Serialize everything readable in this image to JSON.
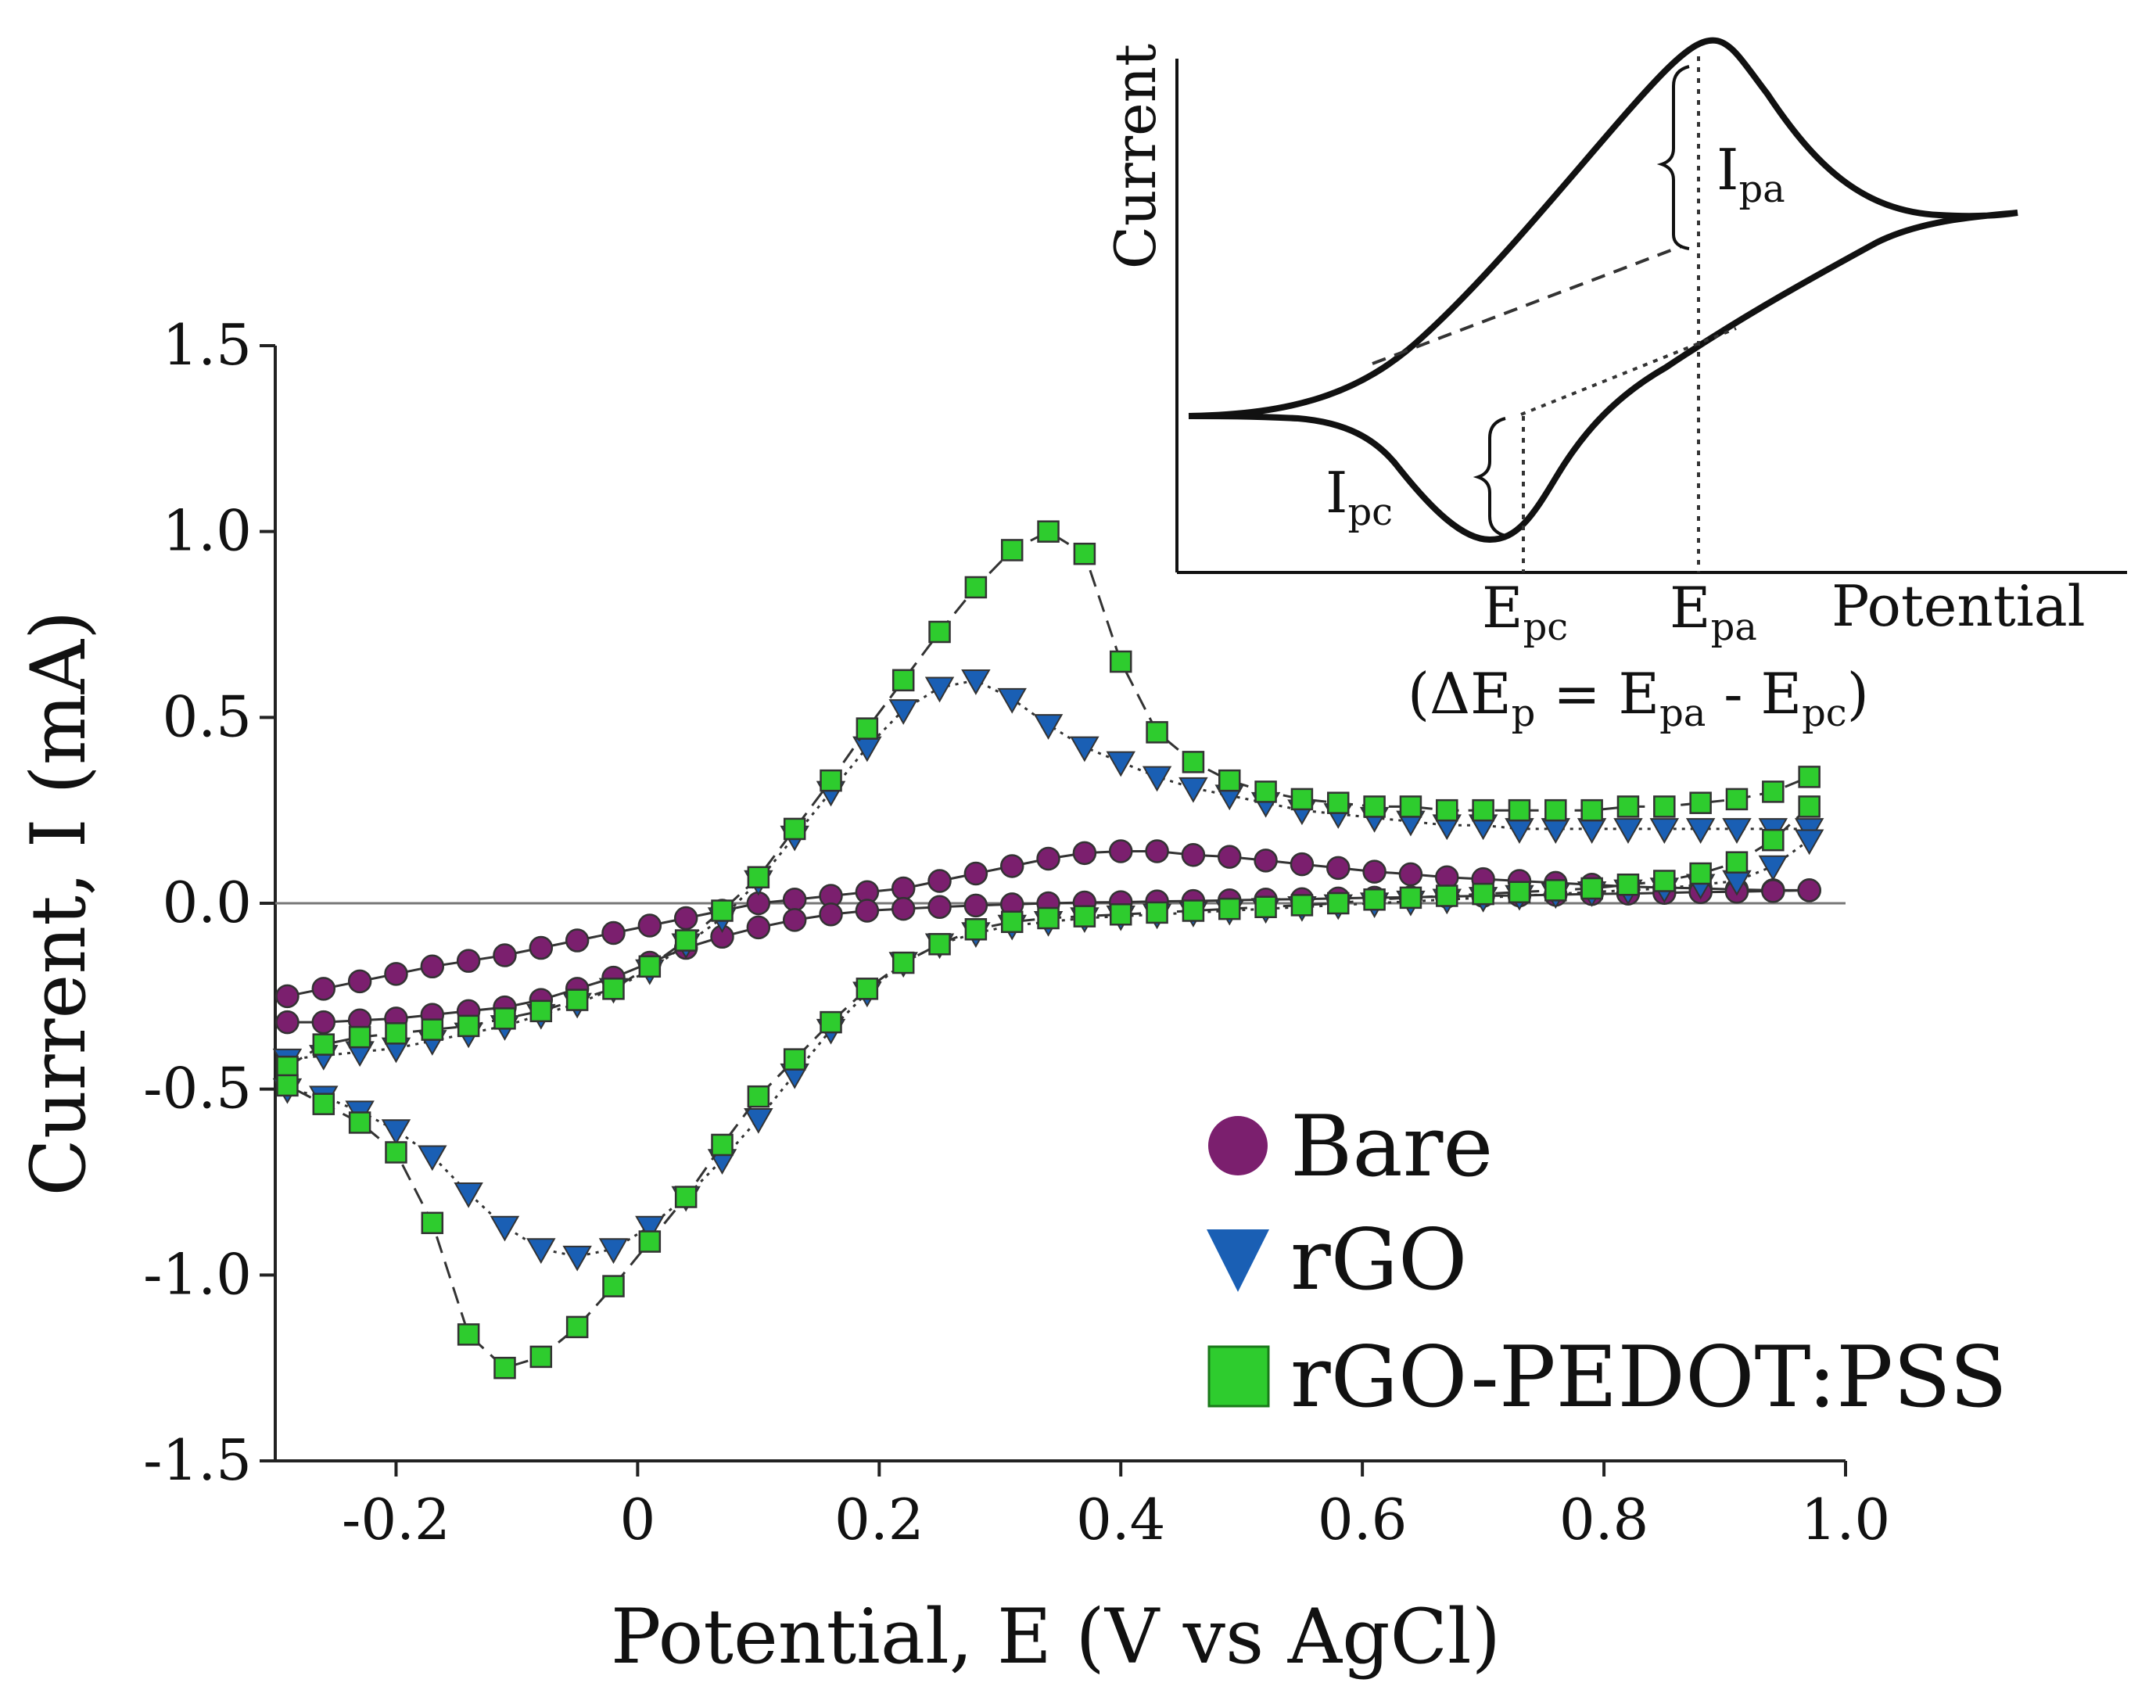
{
  "chart_data": [
    {
      "type": "line",
      "title": "",
      "xlabel": "Potential, E (V vs AgCl)",
      "ylabel": "Current, I (mA)",
      "xlim": [
        -0.3,
        1.0
      ],
      "ylim": [
        -1.5,
        1.5
      ],
      "xticks": [
        -0.2,
        0,
        0.2,
        0.4,
        0.6,
        0.8,
        1.0
      ],
      "xtick_labels": [
        "-0.2",
        "0",
        "0.2",
        "0.4",
        "0.6",
        "0.8",
        "1.0"
      ],
      "yticks": [
        -1.5,
        -1.0,
        -0.5,
        0.0,
        0.5,
        1.0,
        1.5
      ],
      "ytick_labels": [
        "-1.5",
        "-1.0",
        "-0.5",
        "0.0",
        "0.5",
        "1.0",
        "1.5"
      ],
      "grid": false,
      "legend_position": "bottom-right",
      "series": [
        {
          "name": "Bare",
          "marker": "circle",
          "color": "#7b1f6e",
          "line_style": "solid",
          "anodic": {
            "x": [
              -0.29,
              -0.26,
              -0.23,
              -0.2,
              -0.17,
              -0.14,
              -0.11,
              -0.08,
              -0.05,
              -0.02,
              0.01,
              0.04,
              0.07,
              0.1,
              0.13,
              0.16,
              0.19,
              0.22,
              0.25,
              0.28,
              0.31,
              0.34,
              0.37,
              0.4,
              0.43,
              0.46,
              0.49,
              0.52,
              0.55,
              0.58,
              0.61,
              0.64,
              0.67,
              0.7,
              0.73,
              0.76,
              0.79,
              0.82,
              0.85,
              0.88,
              0.91,
              0.94,
              0.97
            ],
            "y": [
              -0.25,
              -0.23,
              -0.21,
              -0.19,
              -0.17,
              -0.155,
              -0.14,
              -0.12,
              -0.1,
              -0.08,
              -0.06,
              -0.04,
              -0.02,
              0.0,
              0.01,
              0.02,
              0.03,
              0.04,
              0.06,
              0.08,
              0.1,
              0.12,
              0.135,
              0.14,
              0.14,
              0.13,
              0.125,
              0.115,
              0.105,
              0.095,
              0.085,
              0.078,
              0.07,
              0.065,
              0.06,
              0.055,
              0.05,
              0.045,
              0.042,
              0.04,
              0.037,
              0.035,
              0.035
            ]
          },
          "cathodic": {
            "x": [
              0.97,
              0.94,
              0.91,
              0.88,
              0.85,
              0.82,
              0.79,
              0.76,
              0.73,
              0.7,
              0.67,
              0.64,
              0.61,
              0.58,
              0.55,
              0.52,
              0.49,
              0.46,
              0.43,
              0.4,
              0.37,
              0.34,
              0.31,
              0.28,
              0.25,
              0.22,
              0.19,
              0.16,
              0.13,
              0.1,
              0.07,
              0.04,
              0.01,
              -0.02,
              -0.05,
              -0.08,
              -0.11,
              -0.14,
              -0.17,
              -0.2,
              -0.23,
              -0.26,
              -0.29
            ],
            "y": [
              0.035,
              0.033,
              0.031,
              0.03,
              0.028,
              0.026,
              0.025,
              0.023,
              0.021,
              0.02,
              0.018,
              0.016,
              0.015,
              0.013,
              0.011,
              0.01,
              0.008,
              0.006,
              0.005,
              0.003,
              0.002,
              0.0,
              -0.003,
              -0.006,
              -0.01,
              -0.015,
              -0.02,
              -0.03,
              -0.045,
              -0.065,
              -0.09,
              -0.12,
              -0.16,
              -0.2,
              -0.23,
              -0.26,
              -0.28,
              -0.29,
              -0.3,
              -0.31,
              -0.315,
              -0.32,
              -0.32
            ]
          }
        },
        {
          "name": "rGO",
          "marker": "triangle-down",
          "color": "#1a5fb4",
          "line_style": "dotted",
          "anodic": {
            "x": [
              -0.29,
              -0.26,
              -0.23,
              -0.2,
              -0.17,
              -0.14,
              -0.11,
              -0.08,
              -0.05,
              -0.02,
              0.01,
              0.04,
              0.07,
              0.1,
              0.13,
              0.16,
              0.19,
              0.22,
              0.25,
              0.28,
              0.31,
              0.34,
              0.37,
              0.4,
              0.43,
              0.46,
              0.49,
              0.52,
              0.55,
              0.58,
              0.61,
              0.64,
              0.67,
              0.7,
              0.73,
              0.76,
              0.79,
              0.82,
              0.85,
              0.88,
              0.91,
              0.94,
              0.97
            ],
            "y": [
              -0.42,
              -0.41,
              -0.4,
              -0.39,
              -0.37,
              -0.35,
              -0.33,
              -0.3,
              -0.27,
              -0.23,
              -0.18,
              -0.11,
              -0.04,
              0.06,
              0.18,
              0.3,
              0.42,
              0.52,
              0.58,
              0.6,
              0.55,
              0.48,
              0.42,
              0.38,
              0.34,
              0.31,
              0.29,
              0.27,
              0.25,
              0.24,
              0.23,
              0.22,
              0.21,
              0.21,
              0.2,
              0.2,
              0.2,
              0.2,
              0.2,
              0.2,
              0.2,
              0.2,
              0.2
            ]
          },
          "cathodic": {
            "x": [
              0.97,
              0.94,
              0.91,
              0.88,
              0.85,
              0.82,
              0.79,
              0.76,
              0.73,
              0.7,
              0.67,
              0.64,
              0.61,
              0.58,
              0.55,
              0.52,
              0.49,
              0.46,
              0.43,
              0.4,
              0.37,
              0.34,
              0.31,
              0.28,
              0.25,
              0.22,
              0.19,
              0.16,
              0.13,
              0.1,
              0.07,
              0.04,
              0.01,
              -0.02,
              -0.05,
              -0.08,
              -0.11,
              -0.14,
              -0.17,
              -0.2,
              -0.23,
              -0.26,
              -0.29
            ],
            "y": [
              0.17,
              0.1,
              0.06,
              0.05,
              0.04,
              0.035,
              0.03,
              0.025,
              0.02,
              0.015,
              0.01,
              0.005,
              0.0,
              -0.005,
              -0.01,
              -0.015,
              -0.02,
              -0.025,
              -0.03,
              -0.035,
              -0.04,
              -0.05,
              -0.06,
              -0.08,
              -0.11,
              -0.16,
              -0.24,
              -0.34,
              -0.46,
              -0.58,
              -0.69,
              -0.79,
              -0.87,
              -0.93,
              -0.95,
              -0.93,
              -0.87,
              -0.78,
              -0.68,
              -0.61,
              -0.56,
              -0.52,
              -0.5
            ]
          }
        },
        {
          "name": "rGO-PEDOT:PSS",
          "marker": "square",
          "color": "#2ecc2e",
          "line_style": "dashed",
          "anodic": {
            "x": [
              -0.29,
              -0.26,
              -0.23,
              -0.2,
              -0.17,
              -0.14,
              -0.11,
              -0.08,
              -0.05,
              -0.02,
              0.01,
              0.04,
              0.07,
              0.1,
              0.13,
              0.16,
              0.19,
              0.22,
              0.25,
              0.28,
              0.31,
              0.34,
              0.37,
              0.4,
              0.43,
              0.46,
              0.49,
              0.52,
              0.55,
              0.58,
              0.61,
              0.64,
              0.67,
              0.7,
              0.73,
              0.76,
              0.79,
              0.82,
              0.85,
              0.88,
              0.91,
              0.94,
              0.97
            ],
            "y": [
              -0.44,
              -0.38,
              -0.36,
              -0.35,
              -0.34,
              -0.33,
              -0.31,
              -0.29,
              -0.26,
              -0.23,
              -0.17,
              -0.1,
              -0.02,
              0.07,
              0.2,
              0.33,
              0.47,
              0.6,
              0.73,
              0.85,
              0.95,
              1.0,
              0.94,
              0.65,
              0.46,
              0.38,
              0.33,
              0.3,
              0.28,
              0.27,
              0.26,
              0.26,
              0.25,
              0.25,
              0.25,
              0.25,
              0.25,
              0.26,
              0.26,
              0.27,
              0.28,
              0.3,
              0.34
            ]
          },
          "cathodic": {
            "x": [
              0.97,
              0.94,
              0.91,
              0.88,
              0.85,
              0.82,
              0.79,
              0.76,
              0.73,
              0.7,
              0.67,
              0.64,
              0.61,
              0.58,
              0.55,
              0.52,
              0.49,
              0.46,
              0.43,
              0.4,
              0.37,
              0.34,
              0.31,
              0.28,
              0.25,
              0.22,
              0.19,
              0.16,
              0.13,
              0.1,
              0.07,
              0.04,
              0.01,
              -0.02,
              -0.05,
              -0.08,
              -0.11,
              -0.14,
              -0.17,
              -0.2,
              -0.23,
              -0.26,
              -0.29
            ],
            "y": [
              0.26,
              0.17,
              0.11,
              0.08,
              0.06,
              0.05,
              0.04,
              0.035,
              0.03,
              0.025,
              0.02,
              0.015,
              0.01,
              0.0,
              -0.005,
              -0.01,
              -0.015,
              -0.02,
              -0.025,
              -0.03,
              -0.035,
              -0.04,
              -0.05,
              -0.07,
              -0.11,
              -0.16,
              -0.23,
              -0.32,
              -0.42,
              -0.52,
              -0.65,
              -0.79,
              -0.91,
              -1.03,
              -1.14,
              -1.22,
              -1.25,
              -1.16,
              -0.86,
              -0.67,
              -0.59,
              -0.54,
              -0.49
            ]
          }
        }
      ]
    },
    {
      "type": "line",
      "title": "",
      "xlabel": "Potential",
      "ylabel": "Current",
      "description_labels": {
        "ipa": "I",
        "ipa_sub": "pa",
        "ipc": "I",
        "ipc_sub": "pc",
        "epc": "E",
        "epc_sub": "pc",
        "epa": "E",
        "epa_sub": "pa",
        "formula_open": "(ΔE",
        "formula_p": "p",
        "formula_eq": " = E",
        "formula_pa": "pa",
        "formula_minus": " - E",
        "formula_pc": "pc",
        "formula_close": ")"
      }
    }
  ]
}
